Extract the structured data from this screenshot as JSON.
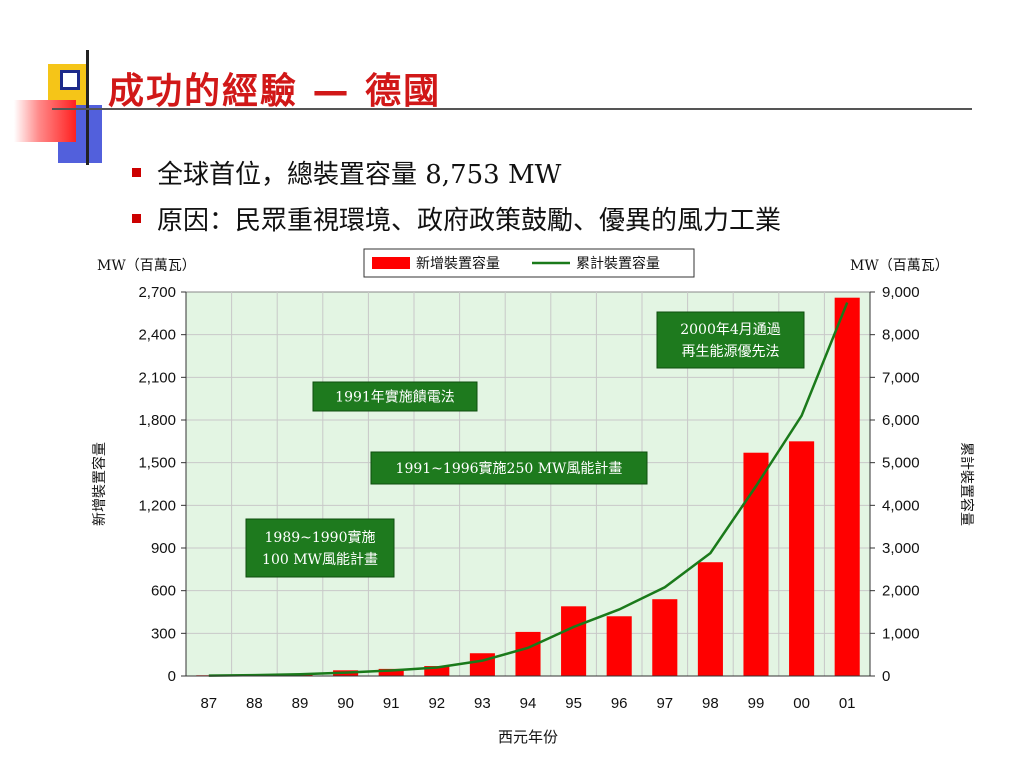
{
  "slide": {
    "title": "成功的經驗 — 德國",
    "bullets": [
      "全球首位，總裝置容量 8,753 MW",
      "原因：民眾重視環境、政府政策鼓勵、優異的風力工業"
    ]
  },
  "colors": {
    "title": "#d11818",
    "bar": "#ff0000",
    "line": "#1a7a1a",
    "plot_bg": "#e3f5e3",
    "note_bg": "#1e7a1e",
    "deco_yellow": "#f5c518",
    "deco_blue": "#3340d0",
    "deco_red": "#ff3333"
  },
  "chart_data": {
    "type": "bar",
    "title": "",
    "xlabel": "西元年份",
    "ylabel": "新增裝置容量",
    "ylabel_right": "累計裝置容量",
    "unit_left": "MW（百萬瓦）",
    "unit_right": "MW（百萬瓦）",
    "categories": [
      "87",
      "88",
      "89",
      "90",
      "91",
      "92",
      "93",
      "94",
      "95",
      "96",
      "97",
      "98",
      "99",
      "00",
      "01"
    ],
    "ylim": [
      0,
      2700
    ],
    "y_ticks": [
      "0",
      "300",
      "600",
      "900",
      "1,200",
      "1,500",
      "1,800",
      "2,100",
      "2,400",
      "2,700"
    ],
    "ylim_right": [
      0,
      9000
    ],
    "y2_ticks": [
      "0",
      "1,000",
      "2,000",
      "3,000",
      "4,000",
      "5,000",
      "6,000",
      "7,000",
      "8,000",
      "9,000"
    ],
    "grid": true,
    "legend_position": "top-center",
    "series": [
      {
        "name": "新增裝置容量",
        "type": "bar",
        "axis": "left",
        "values": [
          5,
          10,
          15,
          40,
          50,
          70,
          160,
          310,
          490,
          420,
          540,
          800,
          1570,
          1650,
          2660
        ]
      },
      {
        "name": "累計裝置容量",
        "type": "line",
        "axis": "right",
        "values": [
          10,
          20,
          40,
          80,
          130,
          200,
          360,
          660,
          1150,
          1560,
          2080,
          2880,
          4450,
          6100,
          8753
        ]
      }
    ],
    "annotations": [
      {
        "lines": [
          "2000年4月通過",
          "再生能源優先法"
        ]
      },
      {
        "lines": [
          "1991年實施饋電法"
        ]
      },
      {
        "lines": [
          "1991~1996實施250 MW風能計畫"
        ]
      },
      {
        "lines": [
          "1989~1990實施",
          "100 MW風能計畫"
        ]
      }
    ]
  }
}
